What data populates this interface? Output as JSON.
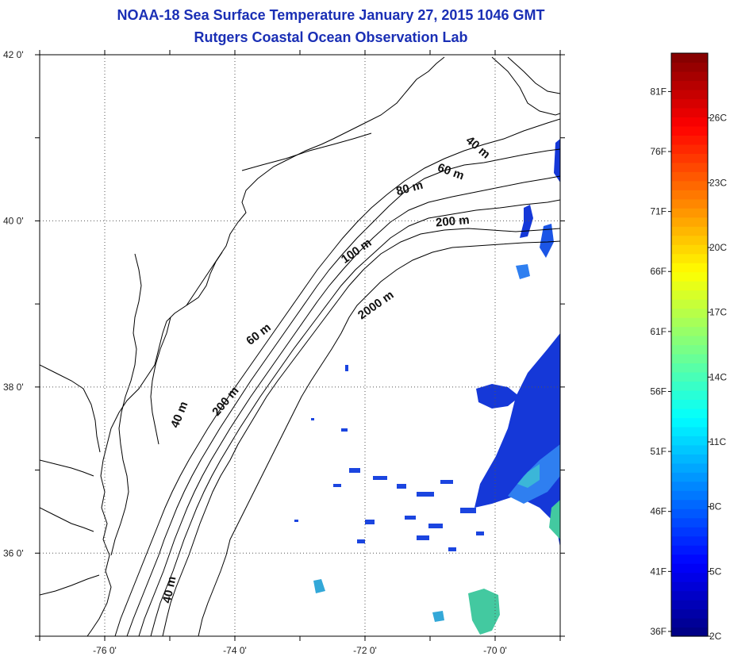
{
  "title": {
    "line1": "NOAA-18 Sea Surface Temperature January 27, 2015 1046 GMT",
    "line2": "Rutgers Coastal Ocean Observation Lab"
  },
  "map": {
    "lon_range": [
      -77,
      -69
    ],
    "lat_range": [
      35,
      42
    ],
    "lon_ticks": [
      {
        "value": -76,
        "label": "-76 0'"
      },
      {
        "value": -74,
        "label": "-74 0'"
      },
      {
        "value": -72,
        "label": "-72 0'"
      },
      {
        "value": -70,
        "label": "-70 0'"
      }
    ],
    "lat_ticks": [
      {
        "value": 42,
        "label": "42 0'"
      },
      {
        "value": 40,
        "label": "40 0'"
      },
      {
        "value": 38,
        "label": "38 0'"
      },
      {
        "value": 36,
        "label": "36 0'"
      }
    ],
    "grid": "dotted",
    "contour_labels": [
      {
        "text": "40 m",
        "lon": -70.3,
        "lat": 40.85,
        "angle": 40
      },
      {
        "text": "60 m",
        "lon": -70.7,
        "lat": 40.55,
        "angle": 20
      },
      {
        "text": "80 m",
        "lon": -71.3,
        "lat": 40.35,
        "angle": -15
      },
      {
        "text": "200 m",
        "lon": -70.65,
        "lat": 39.95,
        "angle": -5
      },
      {
        "text": "100 m",
        "lon": -72.1,
        "lat": 39.6,
        "angle": -35
      },
      {
        "text": "2000 m",
        "lon": -71.8,
        "lat": 38.95,
        "angle": -35
      },
      {
        "text": "60 m",
        "lon": -73.6,
        "lat": 38.6,
        "angle": -38
      },
      {
        "text": "200 m",
        "lon": -74.1,
        "lat": 37.8,
        "angle": -50
      },
      {
        "text": "40 m",
        "lon": -74.8,
        "lat": 37.65,
        "angle": -68
      },
      {
        "text": "40 m",
        "lon": -74.95,
        "lat": 35.55,
        "angle": -78
      }
    ]
  },
  "colorbar": {
    "min_c": 2,
    "max_c": 29,
    "colormap": "jet",
    "fahrenheit_labels": [
      {
        "value_f": 81,
        "label": "81F"
      },
      {
        "value_f": 76,
        "label": "76F"
      },
      {
        "value_f": 71,
        "label": "71F"
      },
      {
        "value_f": 66,
        "label": "66F"
      },
      {
        "value_f": 61,
        "label": "61F"
      },
      {
        "value_f": 56,
        "label": "56F"
      },
      {
        "value_f": 51,
        "label": "51F"
      },
      {
        "value_f": 46,
        "label": "46F"
      },
      {
        "value_f": 41,
        "label": "41F"
      },
      {
        "value_f": 36,
        "label": "36F"
      }
    ],
    "celsius_labels": [
      {
        "value_c": 26,
        "label": "26C"
      },
      {
        "value_c": 23,
        "label": "23C"
      },
      {
        "value_c": 20,
        "label": "20C"
      },
      {
        "value_c": 17,
        "label": "17C"
      },
      {
        "value_c": 14,
        "label": "14C"
      },
      {
        "value_c": 11,
        "label": "11C"
      },
      {
        "value_c": 8,
        "label": "8C"
      },
      {
        "value_c": 5,
        "label": "5C"
      },
      {
        "value_c": 2,
        "label": "2C"
      }
    ]
  }
}
